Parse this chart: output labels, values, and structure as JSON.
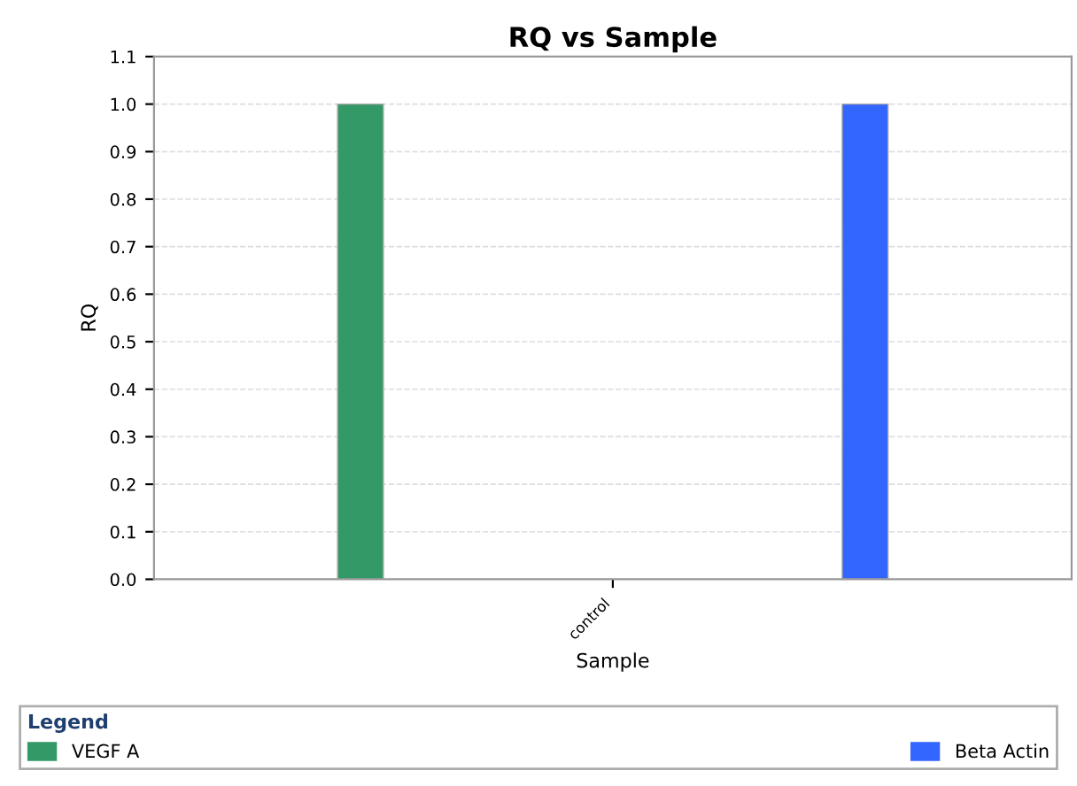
{
  "chart_data": {
    "type": "bar",
    "title": "RQ vs Sample",
    "xlabel": "Sample",
    "ylabel": "RQ",
    "legend_title": "Legend",
    "categories": [
      "control"
    ],
    "series": [
      {
        "name": "VEGF A",
        "color": "#339966",
        "values": [
          1.0
        ]
      },
      {
        "name": "Beta Actin",
        "color": "#3366ff",
        "values": [
          1.0
        ]
      }
    ],
    "ylim": [
      0,
      1.1
    ],
    "yticks": [
      {
        "value": 0,
        "label": "0.0"
      },
      0.1,
      0.2,
      0.3,
      0.4,
      0.5,
      0.6,
      0.7,
      0.8,
      0.9,
      {
        "value": 1,
        "label": "1.0"
      },
      1.1
    ],
    "grid": "y",
    "legend": "bottom"
  }
}
